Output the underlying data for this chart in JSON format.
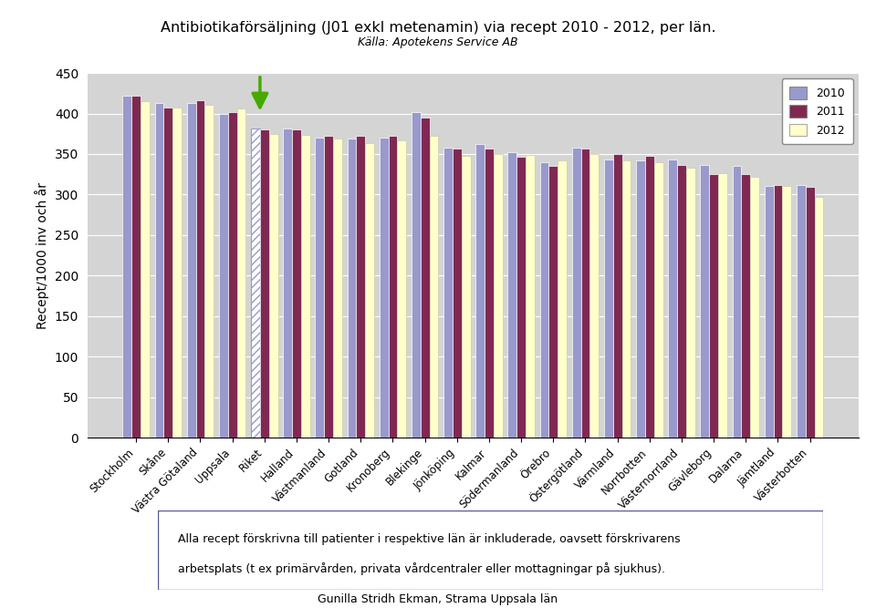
{
  "title": "Antibiotikaförsäljning (J01 exkl metenamin) via recept 2010 - 2012, per län.",
  "subtitle": "Källa: Apotekens Service AB",
  "ylabel": "Recept/1000 inv och år",
  "categories": [
    "Stockholm",
    "Skåne",
    "Västra Götaland",
    "Uppsala",
    "Riket",
    "Halland",
    "Västmanland",
    "Gotland",
    "Kronoberg",
    "Blekinge",
    "Jönköping",
    "Kalmar",
    "Södermanland",
    "Örebro",
    "Östergötland",
    "Värmland",
    "Norrbotten",
    "Västernorrland",
    "Gävleborg",
    "Dalarna",
    "Jämtland",
    "Västerbotten"
  ],
  "values_2010": [
    422,
    413,
    413,
    399,
    382,
    381,
    370,
    369,
    370,
    402,
    358,
    362,
    352,
    340,
    358,
    343,
    342,
    343,
    337,
    335,
    311,
    312
  ],
  "values_2011": [
    422,
    407,
    416,
    402,
    380,
    380,
    372,
    373,
    372,
    395,
    357,
    357,
    347,
    335,
    357,
    350,
    348,
    337,
    325,
    325,
    312,
    310
  ],
  "values_2012": [
    415,
    407,
    411,
    406,
    375,
    374,
    369,
    363,
    367,
    373,
    348,
    350,
    349,
    342,
    350,
    342,
    340,
    333,
    326,
    322,
    311,
    297
  ],
  "color_2010": "#9999cc",
  "color_2011": "#7f2952",
  "color_2012": "#ffffcc",
  "ylim": [
    0,
    450
  ],
  "yticks": [
    0,
    50,
    100,
    150,
    200,
    250,
    300,
    350,
    400,
    450
  ],
  "background_color": "#d4d4d4",
  "footer_text1": "Alla recept förskrivna till patienter i respektive län är inkluderade, oavsett förskrivarens",
  "footer_text2": "arbetsplats (t ex primärvården, privata vårdcentraler eller mottagningar på sjukhus).",
  "footer_text3": "Gunilla Stridh Ekman, Strama Uppsala län"
}
